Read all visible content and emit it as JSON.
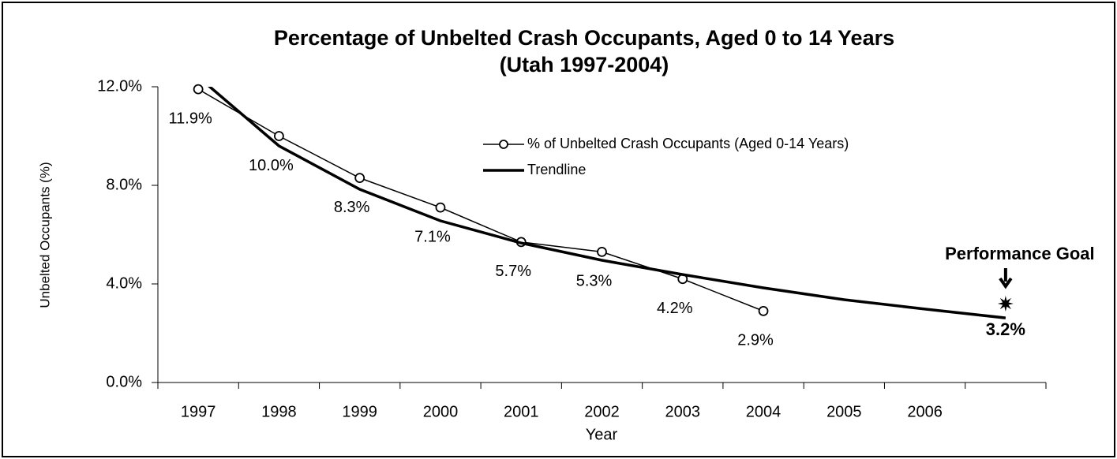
{
  "chart_data": {
    "type": "line",
    "title": "Percentage of Unbelted Crash Occupants, Aged 0 to 14 Years",
    "subtitle": "(Utah 1997-2004)",
    "x_label": "Year",
    "y_label": "Unbelted Occupants (%)",
    "categories": [
      "1997",
      "1998",
      "1999",
      "2000",
      "2001",
      "2002",
      "2003",
      "2004",
      "2005",
      "2006",
      null
    ],
    "series": [
      {
        "name": "% of Unbelted Crash Occupants (Aged 0-14 Years)",
        "color": "#000000",
        "marker": "open-circle",
        "values": [
          11.9,
          10.0,
          8.3,
          7.1,
          5.7,
          5.3,
          4.2,
          2.9,
          null,
          null,
          null
        ],
        "value_labels": [
          "11.9%",
          "10.0%",
          "8.3%",
          "7.1%",
          "5.7%",
          "5.3%",
          "4.2%",
          "2.9%",
          null,
          null,
          null
        ]
      },
      {
        "name": "Trendline",
        "color": "#000000",
        "marker": "none",
        "values": [
          12.4,
          9.6,
          7.84,
          6.56,
          5.66,
          4.96,
          4.38,
          3.84,
          3.36,
          2.98,
          2.62
        ]
      }
    ],
    "goal": {
      "label": "Performance Goal",
      "value": 3.2,
      "value_label": "3.2%"
    },
    "ylim": [
      0,
      12
    ],
    "yticks": [
      {
        "value": 0,
        "label": "0.0%"
      },
      {
        "value": 4,
        "label": "4.0%"
      },
      {
        "value": 8,
        "label": "8.0%"
      },
      {
        "value": 12,
        "label": "12.0%"
      }
    ],
    "grid": false,
    "legend": "top-right"
  }
}
